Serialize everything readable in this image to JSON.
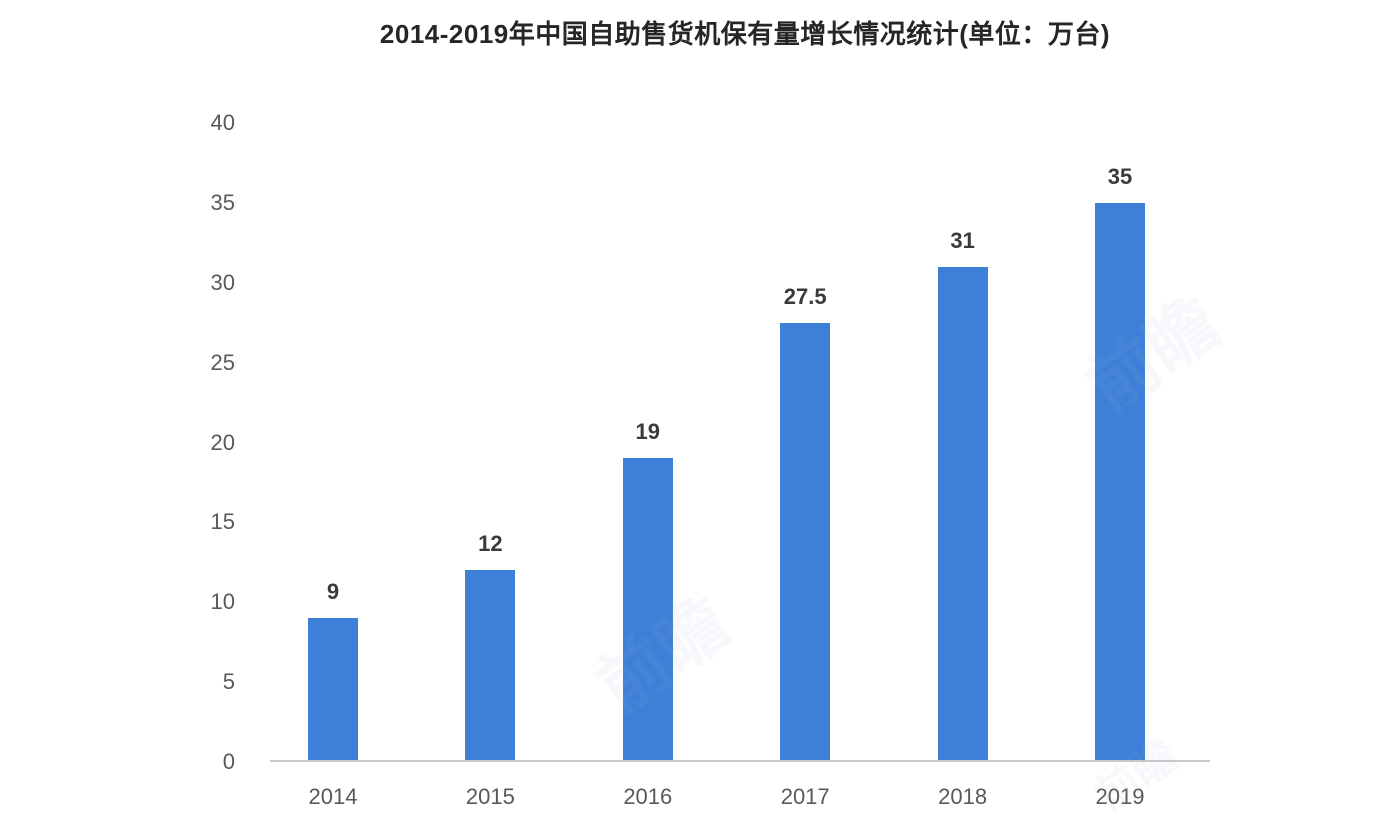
{
  "chart_data": {
    "type": "bar",
    "title": "2014-2019年中国自助售货机保有量增长情况统计(单位：万台)",
    "categories": [
      "2014",
      "2015",
      "2016",
      "2017",
      "2018",
      "2019"
    ],
    "values": [
      9,
      12,
      19,
      27.5,
      31,
      35
    ],
    "value_labels": [
      "9",
      "12",
      "19",
      "27.5",
      "31",
      "35"
    ],
    "xlabel": "",
    "ylabel": "",
    "ylim": [
      0,
      40
    ],
    "yticks": [
      0,
      5,
      10,
      15,
      20,
      25,
      30,
      35,
      40
    ],
    "grid": false,
    "legend": false,
    "bar_color": "#3e80d8",
    "axis_line_color": "#c9c9c9",
    "value_label_color": "#3a3a3a",
    "tick_color": "#595959",
    "title_color": "#262626",
    "background_color": "#ffffff"
  },
  "watermark": {
    "text": "前瞻",
    "color": "#9db4d0"
  }
}
